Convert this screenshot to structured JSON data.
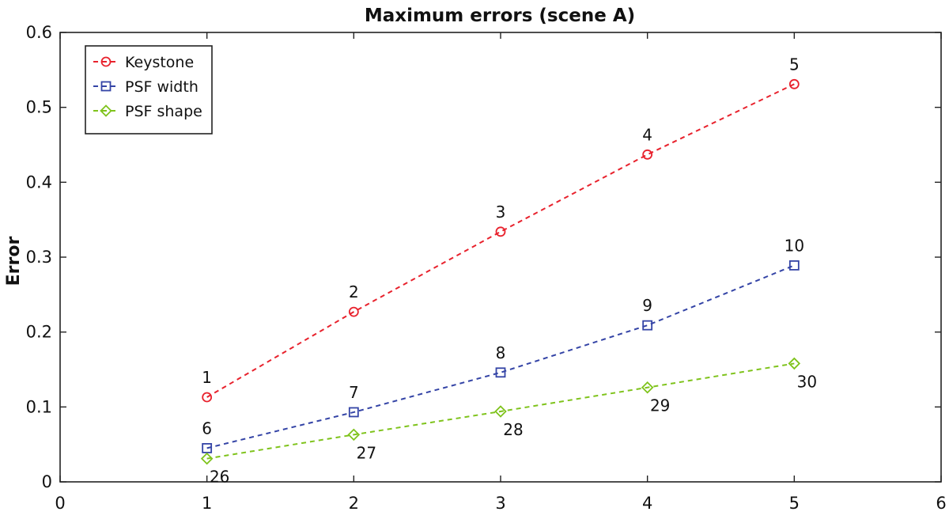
{
  "chart_data": {
    "type": "line",
    "title": "Maximum errors (scene A)",
    "xlabel": "",
    "ylabel": "Error",
    "xlim": [
      0,
      6
    ],
    "ylim": [
      0,
      0.6
    ],
    "xticks": [
      "0",
      "1",
      "2",
      "3",
      "4",
      "5",
      "6"
    ],
    "yticks": [
      "0",
      "0.1",
      "0.2",
      "0.3",
      "0.4",
      "0.5",
      "0.6"
    ],
    "grid": false,
    "legend_position": "top-left",
    "series": [
      {
        "name": "Keystone",
        "color": "#e8222d",
        "marker": "circle",
        "x": [
          1,
          2,
          3,
          4,
          5
        ],
        "y": [
          0.113,
          0.227,
          0.334,
          0.437,
          0.531
        ],
        "point_labels": [
          "1",
          "2",
          "3",
          "4",
          "5"
        ],
        "label_placement": "above"
      },
      {
        "name": "PSF width",
        "color": "#3444a6",
        "marker": "square",
        "x": [
          1,
          2,
          3,
          4,
          5
        ],
        "y": [
          0.045,
          0.093,
          0.146,
          0.209,
          0.289
        ],
        "point_labels": [
          "6",
          "7",
          "8",
          "9",
          "10"
        ],
        "label_placement": "above"
      },
      {
        "name": "PSF shape",
        "color": "#7fc31c",
        "marker": "diamond",
        "x": [
          1,
          2,
          3,
          4,
          5
        ],
        "y": [
          0.031,
          0.063,
          0.094,
          0.126,
          0.158
        ],
        "point_labels": [
          "26",
          "27",
          "28",
          "29",
          "30"
        ],
        "label_placement": "below"
      }
    ]
  }
}
